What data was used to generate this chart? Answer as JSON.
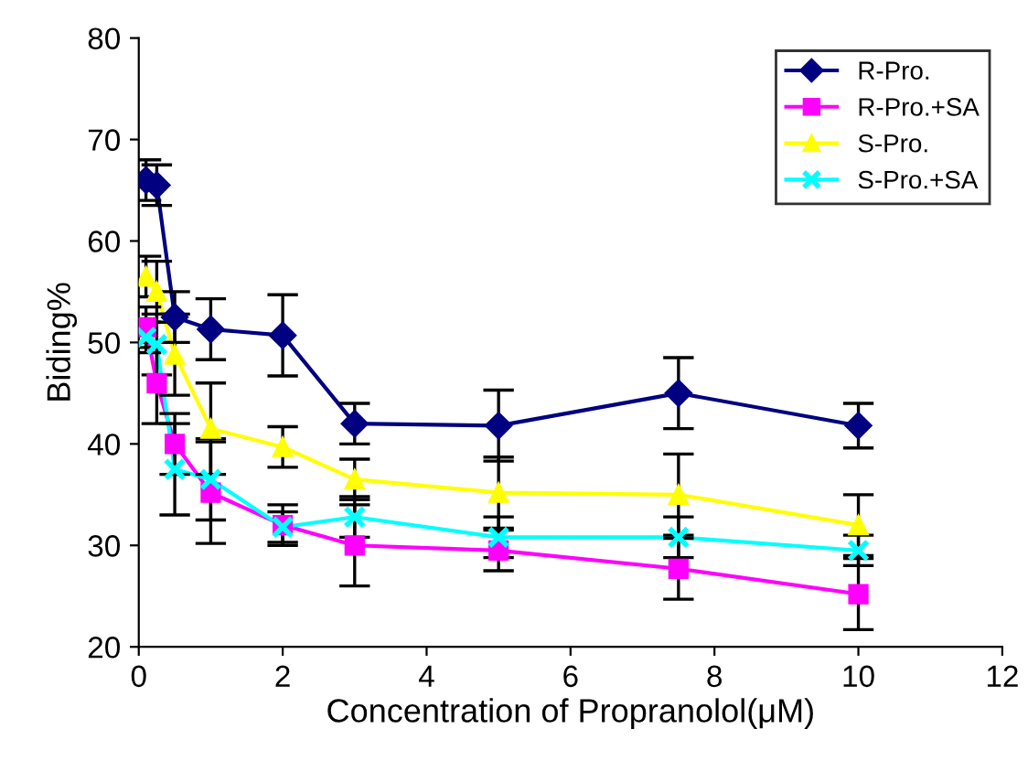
{
  "chart_data": {
    "type": "line",
    "xlabel": "Concentration of Propranolol(μM)",
    "ylabel": "Biding%",
    "x": [
      0.1,
      0.25,
      0.5,
      1,
      2,
      3,
      5,
      7.5,
      10
    ],
    "xlim": [
      0,
      12
    ],
    "xticks": [
      0,
      2,
      4,
      6,
      8,
      10,
      12
    ],
    "ylim": [
      20,
      80
    ],
    "yticks": [
      20,
      30,
      40,
      50,
      60,
      70,
      80
    ],
    "grid": false,
    "legend": "top right",
    "series": [
      {
        "name": "R-Pro.",
        "color": "#000080",
        "marker": "diamond",
        "values": [
          66,
          65.5,
          52.5,
          51.3,
          50.7,
          42,
          41.8,
          45,
          41.8
        ],
        "errors": [
          2,
          2,
          2.5,
          3,
          4,
          2,
          3.5,
          3.5,
          2.2
        ]
      },
      {
        "name": "R-Pro.+SA",
        "color": "#ff00ff",
        "marker": "square",
        "values": [
          51.5,
          46,
          40,
          35.2,
          32,
          30,
          29.5,
          27.7,
          25.2
        ],
        "errors": [
          2,
          4,
          3,
          5,
          2,
          4,
          2,
          3,
          3.5
        ]
      },
      {
        "name": "S-Pro.",
        "color": "#ffff00",
        "marker": "triangle",
        "values": [
          56.5,
          55,
          48.8,
          41.5,
          39.7,
          36.5,
          35.2,
          35,
          32
        ],
        "errors": [
          2,
          3,
          4,
          4.5,
          2,
          2,
          3.5,
          4,
          3
        ]
      },
      {
        "name": "S-Pro.+SA",
        "color": "#00ffff",
        "marker": "cross",
        "values": [
          50.5,
          49.8,
          37.5,
          36.5,
          31.8,
          32.8,
          30.8,
          30.8,
          29.5
        ],
        "errors": [
          1.5,
          3,
          4.5,
          4,
          1.5,
          2,
          2,
          2,
          1.5
        ]
      }
    ]
  }
}
